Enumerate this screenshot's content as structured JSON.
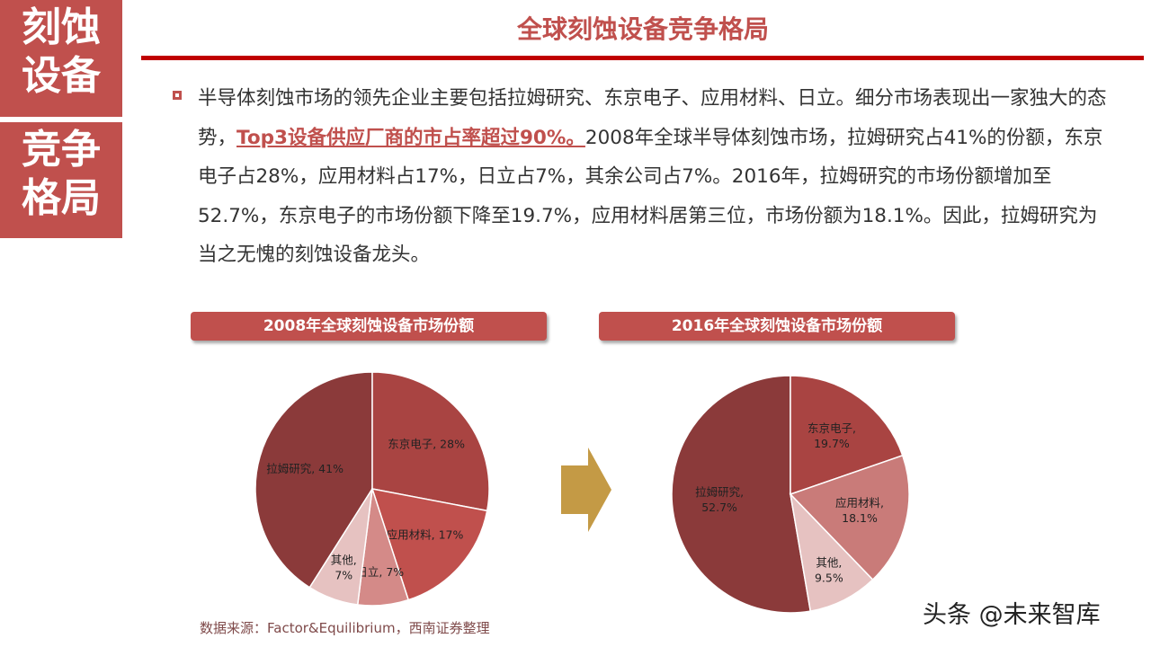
{
  "sidebar": {
    "top_lines": [
      "刻蚀",
      "设备"
    ],
    "bottom_lines": [
      "竞争",
      "格局"
    ]
  },
  "header": {
    "title": "全球刻蚀设备竞争格局"
  },
  "body": {
    "p_before": "半导体刻蚀市场的领先企业主要包括拉姆研究、东京电子、应用材料、日立。细分市场表现出一家独大的态势，",
    "p_highlight": "Top3设备供应厂商的市占率超过90%。",
    "p_after": "2008年全球半导体刻蚀市场，拉姆研究占41%的份额，东京电子占28%，应用材料占17%，日立占7%，其余公司占7%。2016年，拉姆研究的市场份额增加至52.7%，东京电子的市场份额下降至19.7%，应用材料居第三位，市场份额为18.1%。因此，拉姆研究为当之无愧的刻蚀设备龙头。"
  },
  "chart_data": [
    {
      "type": "pie",
      "title": "2008年全球刻蚀设备市场份额",
      "slices": [
        {
          "lines": [
            "拉姆研究, 41%"
          ],
          "value": 41,
          "color": "#8b3a3a"
        },
        {
          "lines": [
            "东京电子, 28%"
          ],
          "value": 28,
          "color": "#a94442"
        },
        {
          "lines": [
            "应用材料, 17%"
          ],
          "value": 17,
          "color": "#c0504d"
        },
        {
          "lines": [
            "日立, 7%"
          ],
          "value": 7,
          "color": "#d48a88"
        },
        {
          "lines": [
            "其他,",
            "7%"
          ],
          "value": 7,
          "color": "#e6c2c1"
        }
      ]
    },
    {
      "type": "pie",
      "title": "2016年全球刻蚀设备市场份额",
      "slices": [
        {
          "lines": [
            "拉姆研究,",
            "52.7%"
          ],
          "value": 52.7,
          "color": "#8b3a3a"
        },
        {
          "lines": [
            "东京电子,",
            "19.7%"
          ],
          "value": 19.7,
          "color": "#a94442"
        },
        {
          "lines": [
            "应用材料,",
            "18.1%"
          ],
          "value": 18.1,
          "color": "#c97b79"
        },
        {
          "lines": [
            "其他,",
            "9.5%"
          ],
          "value": 9.5,
          "color": "#e6c2c1"
        }
      ]
    }
  ],
  "source": "数据来源：Factor&Equilibrium，西南证券整理",
  "watermark": "头条 @未来智库",
  "colors": {
    "brand": "#c0504d",
    "rule": "#c00000",
    "arrow": "#c49a45"
  }
}
